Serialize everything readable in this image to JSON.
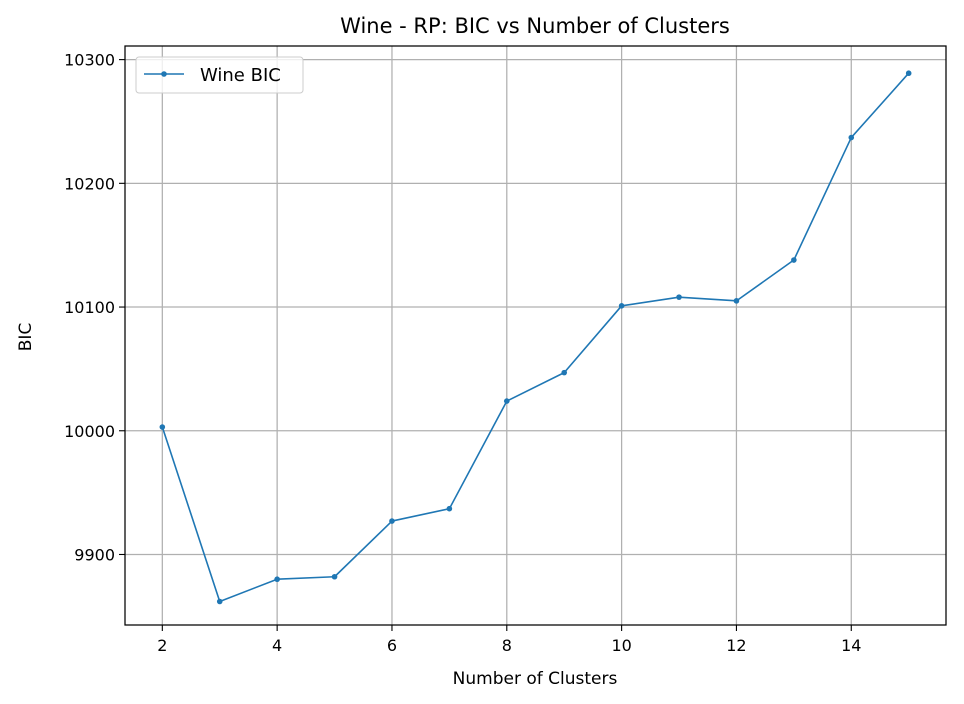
{
  "chart_data": {
    "type": "line",
    "title": "Wine - RP: BIC vs Number of Clusters",
    "xlabel": "Number of Clusters",
    "ylabel": "BIC",
    "xlim": [
      1.35,
      15.65
    ],
    "ylim": [
      9843,
      10311
    ],
    "xticks": [
      2,
      4,
      6,
      8,
      10,
      12,
      14
    ],
    "yticks": [
      9900,
      10000,
      10100,
      10200,
      10300
    ],
    "grid": true,
    "legend_position": "top-left",
    "series": [
      {
        "name": "Wine BIC",
        "color": "#1f77b4",
        "marker": "circle",
        "x": [
          2,
          3,
          4,
          5,
          6,
          7,
          8,
          9,
          10,
          11,
          12,
          13,
          14,
          15
        ],
        "y": [
          10003,
          9862,
          9880,
          9882,
          9927,
          9937,
          10024,
          10047,
          10101,
          10108,
          10105,
          10138,
          10237,
          10289
        ]
      }
    ]
  }
}
